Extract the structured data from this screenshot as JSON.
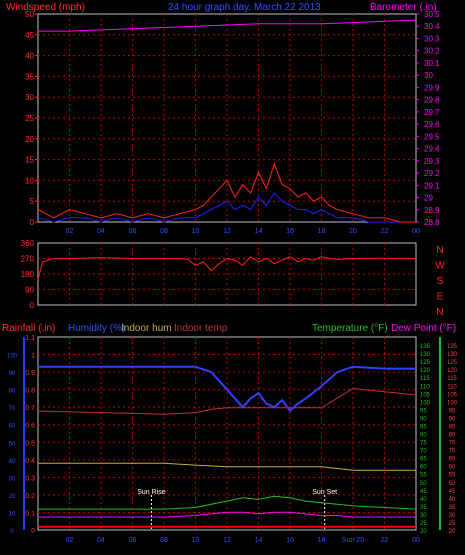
{
  "title": "24 hour graph day, March 22 2013",
  "colors": {
    "bg": "#000000",
    "grid": "#c00000",
    "wind": "#ff2020",
    "gust": "#2020ff",
    "baro": "#ff00ff",
    "rain": "#ff0000",
    "hum": "#3040ff",
    "inhum": "#c0b040",
    "intemp": "#c03030",
    "temp": "#20c020",
    "dew": "#ff00ff",
    "axisleft": "#ff3030",
    "axisbaro": "#ff00ff",
    "axisblue": "#2040ff",
    "axisgreen": "#20c020"
  },
  "chart_data": [
    {
      "type": "line",
      "name": "wind-baro",
      "title": "24 hour graph day, March 22 2013",
      "left_label": "Windspeed (mph)",
      "right_label": "Barometer (.in)",
      "left_ticks": [
        "0",
        "5",
        "10",
        "15",
        "20",
        "25",
        "30",
        "35",
        "40",
        "45",
        "50"
      ],
      "right_ticks": [
        "28.8",
        "28.9",
        "29",
        "29.1",
        "29.2",
        "29.3",
        "29.4",
        "29.5",
        "29.6",
        "29.7",
        "29.8",
        "29.9",
        "30",
        "30.1",
        "30.2",
        "30.3",
        "30.4",
        "30.5"
      ],
      "x_ticks": [
        "02",
        "04",
        "06",
        "08",
        "10",
        "12",
        "14",
        "16",
        "18",
        "20",
        "22",
        "00"
      ],
      "ylim": [
        0,
        50
      ],
      "barometer": {
        "x": [
          0,
          2,
          4,
          6,
          8,
          10,
          12,
          14,
          16,
          18,
          20,
          22,
          24
        ],
        "y": [
          30.36,
          30.36,
          30.37,
          30.38,
          30.39,
          30.4,
          30.41,
          30.42,
          30.42,
          30.42,
          30.43,
          30.44,
          30.45
        ]
      },
      "windspeed": {
        "x": [
          0,
          1,
          2,
          3,
          4,
          5,
          6,
          7,
          8,
          9,
          10,
          10.5,
          11,
          11.5,
          12,
          12.5,
          13,
          13.5,
          14,
          14.5,
          15,
          15.5,
          16,
          16.5,
          17,
          17.5,
          18,
          18.5,
          19,
          20,
          21,
          22,
          23,
          24
        ],
        "y": [
          3,
          1,
          3,
          2,
          1,
          2,
          1,
          2,
          1,
          2,
          3,
          4,
          6,
          8,
          10,
          6,
          9,
          7,
          12,
          8,
          14,
          9,
          8,
          6,
          7,
          5,
          6,
          4,
          3,
          2,
          1,
          1,
          0,
          0
        ]
      },
      "gust": {
        "x": [
          0,
          1,
          2,
          3,
          4,
          5,
          6,
          7,
          8,
          9,
          10,
          10.5,
          11,
          11.5,
          12,
          12.5,
          13,
          13.5,
          14,
          14.5,
          15,
          15.5,
          16,
          16.5,
          17,
          17.5,
          18,
          18.5,
          19,
          20,
          21,
          22,
          23,
          24
        ],
        "y": [
          1,
          0,
          1,
          1,
          0,
          1,
          0,
          1,
          0,
          1,
          1,
          2,
          3,
          4,
          5,
          3,
          4,
          3,
          6,
          4,
          7,
          5,
          4,
          3,
          3,
          2,
          3,
          2,
          1,
          1,
          0,
          0,
          0,
          0
        ]
      }
    },
    {
      "type": "scatter",
      "name": "wind-direction",
      "left_ticks": [
        "0",
        "90",
        "180",
        "270",
        "360"
      ],
      "right_labels": [
        "N",
        "W",
        "S",
        "E",
        "N"
      ],
      "ylim": [
        0,
        360
      ],
      "direction": {
        "x": [
          0,
          0.3,
          1,
          2,
          4,
          6,
          8,
          9,
          9.5,
          10,
          10.5,
          11,
          11.5,
          12,
          12.5,
          13,
          13.5,
          14,
          14.5,
          15,
          15.5,
          16,
          16.5,
          17,
          17.5,
          18,
          18.5,
          19,
          20,
          22,
          24
        ],
        "y": [
          150,
          250,
          270,
          270,
          275,
          270,
          270,
          270,
          265,
          230,
          250,
          200,
          240,
          270,
          260,
          230,
          280,
          250,
          270,
          240,
          260,
          280,
          250,
          270,
          260,
          280,
          270,
          265,
          270,
          272,
          270
        ]
      }
    },
    {
      "type": "line",
      "name": "rain-hum-temp",
      "labels": {
        "rain": "Rainfall (.in)",
        "hum": "Humidity (%)",
        "inhum": "Indoor hum",
        "intemp": "Indoor temp",
        "temp": "Temperature (°F)",
        "dew": "Dew Point (°F)"
      },
      "left_rain_ticks": [
        "0",
        "0.1",
        "0.2",
        "0.3",
        "0.4",
        "0.5",
        "0.6",
        "0.7",
        "0.8",
        "0.9",
        "1",
        "1.1"
      ],
      "left_hum_ticks": [
        "0",
        "10",
        "20",
        "30",
        "40",
        "50",
        "60",
        "70",
        "80",
        "90",
        "100"
      ],
      "right_temp_ticks": [
        "20",
        "25",
        "30",
        "35",
        "40",
        "45",
        "50",
        "55",
        "60",
        "65",
        "70",
        "75",
        "80",
        "85",
        "90",
        "95",
        "100",
        "105",
        "110",
        "115",
        "120",
        "125",
        "130",
        "135"
      ],
      "x_ticks": [
        "02",
        "04",
        "06",
        "08",
        "10",
        "12",
        "14",
        "16",
        "18",
        "Sun 20",
        "22",
        "00"
      ],
      "annotations": [
        "Sun Rise",
        "Sun Set"
      ],
      "humidity": {
        "x": [
          0,
          2,
          4,
          6,
          8,
          10,
          11,
          12,
          12.5,
          13,
          13.5,
          14,
          14.5,
          15,
          15.5,
          16,
          16.5,
          17,
          18,
          19,
          20,
          22,
          24
        ],
        "y": [
          93,
          93,
          93,
          93,
          93,
          93,
          90,
          80,
          75,
          70,
          75,
          78,
          72,
          70,
          74,
          68,
          72,
          75,
          82,
          90,
          93,
          92,
          92
        ]
      },
      "indoor_hum": {
        "x": [
          0,
          4,
          8,
          10,
          12,
          16,
          18,
          20,
          22,
          24
        ],
        "y": [
          38,
          38,
          38,
          37,
          36,
          36,
          36,
          34,
          34,
          34
        ]
      },
      "indoor_temp": {
        "x": [
          0,
          4,
          8,
          10,
          11,
          12,
          16,
          18,
          19,
          20,
          22,
          24
        ],
        "y": [
          94,
          93,
          92,
          93,
          95,
          96,
          96,
          96,
          102,
          108,
          106,
          104
        ]
      },
      "temperature": {
        "x": [
          0,
          4,
          8,
          10,
          11,
          12,
          13,
          14,
          15,
          16,
          17,
          18,
          19,
          20,
          22,
          24
        ],
        "y": [
          33,
          33,
          33,
          34,
          36,
          38,
          40,
          39,
          41,
          40,
          38,
          37,
          36,
          35,
          34,
          33
        ]
      },
      "dew_point": {
        "x": [
          0,
          4,
          8,
          10,
          11,
          12,
          13,
          14,
          15,
          16,
          17,
          18,
          19,
          20,
          22,
          24
        ],
        "y": [
          28,
          28,
          28,
          29,
          30,
          31,
          31,
          30,
          31,
          31,
          30,
          29,
          29,
          28,
          28,
          28
        ]
      },
      "rainfall": {
        "x": [
          0,
          10,
          12,
          14,
          16,
          18,
          20,
          22,
          23,
          24
        ],
        "y": [
          0.02,
          0.02,
          0.02,
          0.02,
          0.02,
          0.02,
          0.02,
          0.02,
          0.02,
          0.02
        ]
      }
    }
  ]
}
